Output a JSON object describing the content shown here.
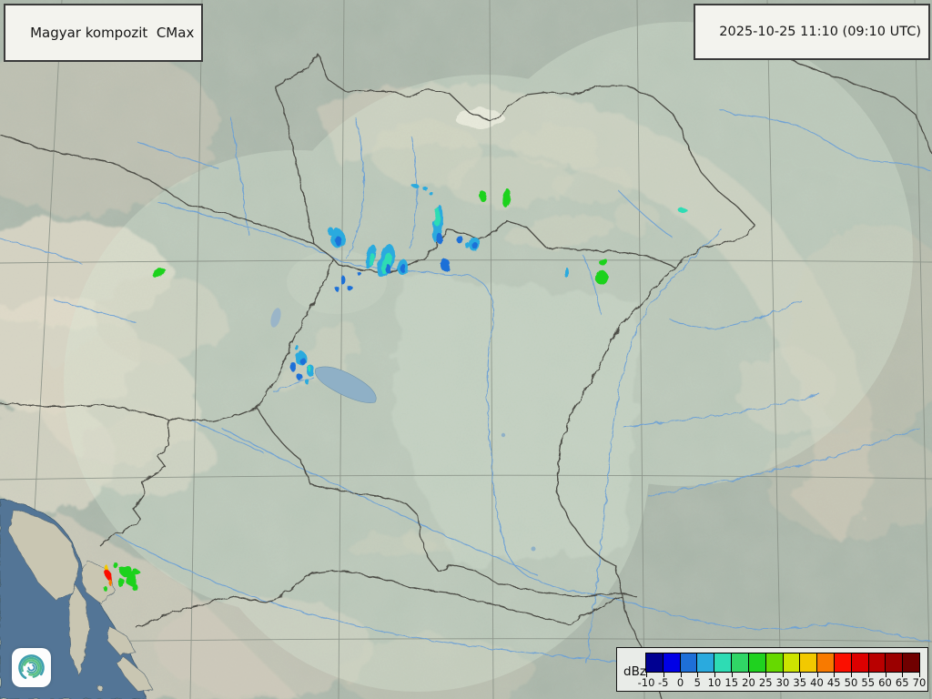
{
  "header": {
    "product_label": "Magyar kompozit  CMax",
    "timestamp": "2025-10-25 11:10 (09:10 UTC)"
  },
  "legend": {
    "unit_label": "dBz",
    "tick_labels": [
      "-10",
      "-5",
      "0",
      "5",
      "10",
      "15",
      "20",
      "25",
      "30",
      "35",
      "40",
      "45",
      "50",
      "55",
      "60",
      "65",
      "70"
    ],
    "colors": [
      "#000091",
      "#0000e6",
      "#1e6fd8",
      "#2aaade",
      "#2edcb4",
      "#30d666",
      "#1fd21f",
      "#66d900",
      "#cce400",
      "#f2c900",
      "#f87a00",
      "#fb0f00",
      "#dd0000",
      "#b90000",
      "#9b0000",
      "#700000"
    ]
  },
  "logo": {
    "name": "met-service-spiral-logo"
  },
  "map": {
    "echoes": [
      [
        175,
        300,
        8,
        3,
        -25,
        22
      ],
      [
        363,
        254,
        4,
        4,
        0,
        7
      ],
      [
        371,
        262,
        8,
        10,
        0,
        7
      ],
      [
        372,
        265,
        4,
        5,
        0,
        2
      ],
      [
        377,
        308,
        3,
        5,
        0,
        2
      ],
      [
        385,
        317,
        3,
        3,
        0,
        2
      ],
      [
        371,
        318,
        2,
        3,
        0,
        2
      ],
      [
        394,
        300,
        2,
        2,
        0,
        2
      ],
      [
        407,
        282,
        5,
        14,
        12,
        7
      ],
      [
        408,
        285,
        3,
        7,
        12,
        12
      ],
      [
        424,
        287,
        9,
        19,
        15,
        7
      ],
      [
        425,
        290,
        5,
        12,
        15,
        12
      ],
      [
        427,
        296,
        3,
        5,
        0,
        2
      ],
      [
        442,
        293,
        6,
        9,
        0,
        7
      ],
      [
        443,
        295,
        3,
        5,
        0,
        2
      ],
      [
        456,
        204,
        4,
        2,
        0,
        7
      ],
      [
        467,
        207,
        3,
        2,
        0,
        7
      ],
      [
        474,
        213,
        2,
        2,
        0,
        7
      ],
      [
        481,
        246,
        5,
        21,
        6,
        7
      ],
      [
        480,
        238,
        3,
        10,
        6,
        12
      ],
      [
        483,
        262,
        3,
        6,
        0,
        2
      ],
      [
        489,
        291,
        5,
        7,
        0,
        2
      ],
      [
        505,
        263,
        4,
        4,
        0,
        2
      ],
      [
        513,
        269,
        3,
        3,
        0,
        7
      ],
      [
        521,
        268,
        6,
        8,
        0,
        7
      ],
      [
        522,
        270,
        3,
        4,
        0,
        2
      ],
      [
        531,
        216,
        4,
        6,
        0,
        22
      ],
      [
        557,
        218,
        5,
        10,
        8,
        22
      ],
      [
        623,
        300,
        2,
        6,
        0,
        7
      ],
      [
        662,
        287,
        5,
        4,
        0,
        22
      ],
      [
        661,
        305,
        7,
        8,
        0,
        22
      ],
      [
        750,
        231,
        5,
        3,
        0,
        12
      ],
      [
        331,
        394,
        6,
        8,
        0,
        7
      ],
      [
        333,
        397,
        3,
        4,
        0,
        2
      ],
      [
        322,
        403,
        4,
        5,
        0,
        2
      ],
      [
        341,
        407,
        5,
        6,
        0,
        7
      ],
      [
        340,
        405,
        2,
        3,
        0,
        12
      ],
      [
        330,
        415,
        3,
        4,
        0,
        2
      ],
      [
        338,
        420,
        2,
        3,
        0,
        7
      ],
      [
        326,
        382,
        2,
        3,
        0,
        7
      ],
      [
        117,
        624,
        2,
        4,
        -15,
        37
      ],
      [
        119,
        632,
        3,
        6,
        -15,
        47
      ],
      [
        121,
        640,
        2,
        4,
        -15,
        42
      ],
      [
        115,
        646,
        2,
        3,
        0,
        22
      ],
      [
        138,
        627,
        7,
        6,
        0,
        22
      ],
      [
        144,
        636,
        6,
        8,
        0,
        22
      ],
      [
        133,
        640,
        4,
        5,
        0,
        22
      ],
      [
        150,
        629,
        4,
        3,
        0,
        22
      ],
      [
        148,
        645,
        3,
        4,
        0,
        22
      ],
      [
        127,
        621,
        3,
        3,
        0,
        22
      ]
    ]
  }
}
